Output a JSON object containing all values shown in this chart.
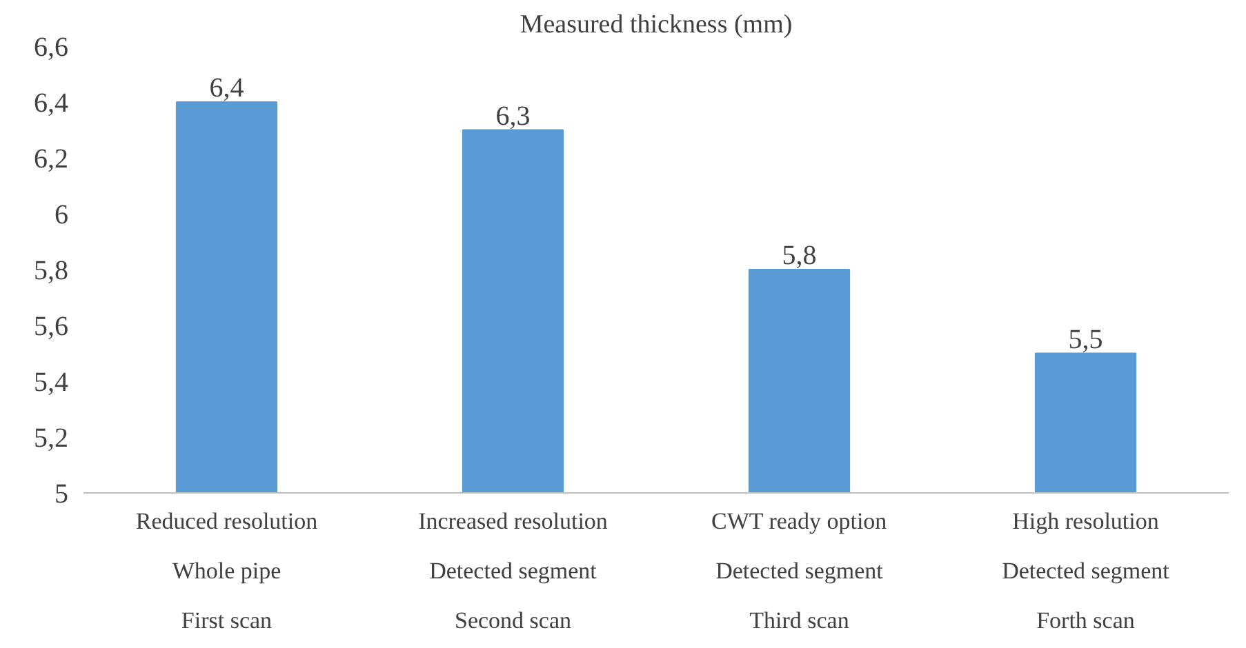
{
  "chart_data": {
    "type": "bar",
    "title": "Measured thickness (mm)",
    "categories": [
      "Reduced resolution\nWhole pipe\nFirst scan",
      "Increased resolution\nDetected segment\nSecond scan",
      "CWT ready option\nDetected segment\nThird scan",
      "High resolution\nDetected segment\nForth scan"
    ],
    "values": [
      6.4,
      6.3,
      5.8,
      5.5
    ],
    "value_labels": [
      "6,4",
      "6,3",
      "5,8",
      "5,5"
    ],
    "color": "#5b9bd5",
    "ylim": [
      5,
      6.6
    ],
    "yticks": [
      {
        "value": 5,
        "label": "5"
      },
      {
        "value": 5.2,
        "label": "5,2"
      },
      {
        "value": 5.4,
        "label": "5,4"
      },
      {
        "value": 5.6,
        "label": "5,6"
      },
      {
        "value": 5.8,
        "label": "5,8"
      },
      {
        "value": 6,
        "label": "6"
      },
      {
        "value": 6.2,
        "label": "6,2"
      },
      {
        "value": 6.4,
        "label": "6,4"
      },
      {
        "value": 6.6,
        "label": "6,6"
      }
    ],
    "grid": false
  }
}
